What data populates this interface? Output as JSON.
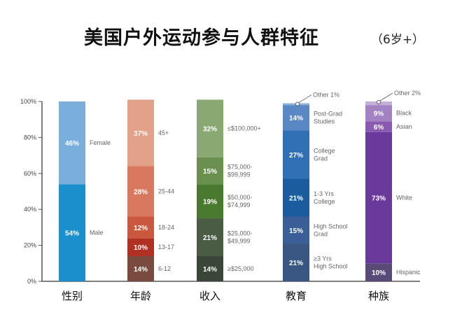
{
  "chart_data": {
    "type": "bar",
    "stacked": true,
    "title": "美国户外运动参与人群特征",
    "subtitle": "（6岁+）",
    "ylim": [
      0,
      100
    ],
    "yticks": [
      "0%",
      "20%",
      "40%",
      "60%",
      "80%",
      "100%"
    ],
    "groups": [
      {
        "name": "性别",
        "segments": [
          {
            "label": "Male",
            "value": 54,
            "color": "#1a8fcc"
          },
          {
            "label": "Female",
            "value": 46,
            "color": "#7aaedb"
          }
        ]
      },
      {
        "name": "年龄",
        "segments": [
          {
            "label": "6-12",
            "value": 14,
            "color": "#7a4a3e"
          },
          {
            "label": "13-17",
            "value": 10,
            "color": "#b03022"
          },
          {
            "label": "18-24",
            "value": 12,
            "color": "#c9583f"
          },
          {
            "label": "25-44",
            "value": 28,
            "color": "#d8795f"
          },
          {
            "label": "45+",
            "value": 37,
            "color": "#e2a28a"
          }
        ]
      },
      {
        "name": "收入",
        "segments": [
          {
            "label": "≥$25,000",
            "value": 14,
            "color": "#394638"
          },
          {
            "label": "$25,000-\n$49,999",
            "value": 21,
            "color": "#4a5d44"
          },
          {
            "label": "$50,000-\n$74,999",
            "value": 19,
            "color": "#4a7a30"
          },
          {
            "label": "$75,000-\n$99,999",
            "value": 15,
            "color": "#6a9050"
          },
          {
            "label": "≤$100,000+",
            "value": 32,
            "color": "#8aa872"
          }
        ]
      },
      {
        "name": "教育",
        "segments": [
          {
            "label": "≥3 Yrs\nHigh School",
            "value": 21,
            "color": "#3a5682"
          },
          {
            "label": "High School\nGrad",
            "value": 15,
            "color": "#3a5f96"
          },
          {
            "label": "1-3 Yrs\nCollege",
            "value": 21,
            "color": "#1a5c9e"
          },
          {
            "label": "College\nGrad",
            "value": 27,
            "color": "#3270b6"
          },
          {
            "label": "Post-Grad\nStudies",
            "value": 14,
            "color": "#5a88c4"
          },
          {
            "label": "Other 1%",
            "value": 1,
            "color": "#8ab0d8",
            "callout": true
          }
        ]
      },
      {
        "name": "种族",
        "segments": [
          {
            "label": "Hispanic",
            "value": 10,
            "color": "#5a4a78"
          },
          {
            "label": "White",
            "value": 73,
            "color": "#6a3a9a"
          },
          {
            "label": "Asian",
            "value": 6,
            "color": "#8a5ab0"
          },
          {
            "label": "Black",
            "value": 9,
            "color": "#a282c2"
          },
          {
            "label": "Other 2%",
            "value": 2,
            "color": "#c4aedc",
            "callout": true
          }
        ]
      }
    ]
  }
}
